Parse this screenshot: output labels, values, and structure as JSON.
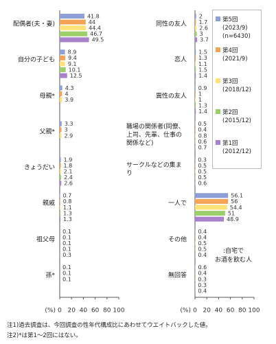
{
  "chart_data": [
    {
      "type": "barh",
      "categories": [
        "配偶者(夫・妻)",
        "自分の子ども",
        "母親*",
        "父親*",
        "きょうだい",
        "親戚",
        "祖父母",
        "孫*"
      ],
      "xlabel": "(%)",
      "xlim": [
        0,
        100
      ],
      "xticks": [
        0,
        20,
        40,
        60,
        80,
        100
      ],
      "series": [
        {
          "color": "#8e9fd8",
          "values": [
            41.8,
            8.9,
            4.3,
            3.3,
            1.9,
            0.7,
            0.1,
            0.1
          ]
        },
        {
          "color": "#f5a356",
          "values": [
            44.0,
            9.4,
            4.0,
            3.0,
            1.8,
            0.8,
            0.1,
            0.1
          ]
        },
        {
          "color": "#ffe27a",
          "values": [
            44.4,
            9.1,
            3.9,
            2.9,
            2.1,
            1.1,
            0.1,
            0.1
          ]
        },
        {
          "color": "#9ccf6a",
          "values": [
            46.7,
            10.1,
            null,
            null,
            2.4,
            1.3,
            0.1,
            null
          ]
        },
        {
          "color": "#a982cb",
          "values": [
            49.5,
            12.5,
            null,
            null,
            2.6,
            1.3,
            0.3,
            null
          ]
        }
      ]
    },
    {
      "type": "barh",
      "categories": [
        "同性の友人",
        "恋人",
        "異性の友人",
        "職場の関係者(同僚、上司、先輩、仕事の関係など)",
        "サークルなどの集まり",
        "一人で",
        "その他",
        "無回答"
      ],
      "xlabel": "(%)",
      "xlim": [
        0,
        100
      ],
      "xticks": [
        0,
        20,
        40,
        60,
        80,
        100
      ],
      "annotation": ":自宅で\nお酒を飲む人",
      "series": [
        {
          "name": "第5回",
          "period": "(2023/9)",
          "n": "(n=6430)",
          "color": "#8e9fd8",
          "values": [
            2.0,
            1.5,
            0.9,
            0.5,
            0.3,
            56.1,
            0.4,
            0.6
          ]
        },
        {
          "name": "第4回",
          "period": "(2021/9)",
          "color": "#f5a356",
          "values": [
            1.7,
            1.3,
            1.0,
            0.4,
            0.5,
            56.0,
            0.4,
            0.4
          ]
        },
        {
          "name": "第3回",
          "period": "(2018/12)",
          "color": "#ffe27a",
          "values": [
            2.6,
            1.1,
            1.0,
            0.8,
            0.5,
            54.4,
            0.5,
            0.3
          ]
        },
        {
          "name": "第2回",
          "period": "(2015/12)",
          "color": "#9ccf6a",
          "values": [
            3.0,
            1.5,
            1.3,
            0.6,
            0.5,
            51.0,
            0.5,
            0.3
          ]
        },
        {
          "name": "第1回",
          "period": "(2012/12)",
          "color": "#a982cb",
          "values": [
            3.7,
            1.4,
            1.4,
            0.7,
            0.6,
            48.9,
            0.4,
            0.4
          ]
        }
      ]
    }
  ],
  "notes": [
    "注1)過去調査は、今回調査の性年代構成比にあわせてウエイトバックした値。",
    "注2)*は第1～2回にはない。"
  ]
}
